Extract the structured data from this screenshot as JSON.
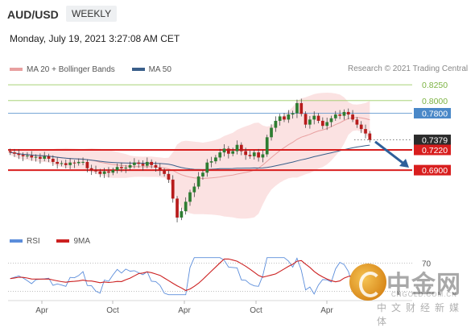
{
  "header": {
    "pair": "AUD/USD",
    "timeframe": "WEEKLY",
    "datetime": "Monday, July 19, 2021 3:27:08 AM CET"
  },
  "legend": {
    "items": [
      {
        "label": "MA 20 + Bollinger Bands",
        "color": "#e8a0a0"
      },
      {
        "label": "MA 50",
        "color": "#3a5f8a"
      }
    ],
    "credit": "Research © 2021 Trading Central"
  },
  "rsi_legend": {
    "items": [
      {
        "label": "RSI",
        "color": "#5b8ddb"
      },
      {
        "label": "9MA",
        "color": "#cc2020"
      }
    ]
  },
  "watermark": {
    "name": "中金网",
    "url": "CNGOLD.COM.CN",
    "sub": "中文财经新媒体"
  },
  "colors": {
    "resistance_blue": "#4a88c8",
    "support_red": "#d81e1e",
    "target_green": "#9ccc65",
    "current_dark": "#2b2b2b",
    "arrow": "#2e5f9a"
  },
  "chart_data": {
    "type": "candlestick",
    "title": "AUD/USD weekly",
    "ylim": [
      0.592,
      0.838
    ],
    "x_ticks": [
      "Apr",
      "Oct",
      "Apr",
      "Oct",
      "Apr"
    ],
    "levels": [
      {
        "label": "0.8250",
        "value": 0.825,
        "kind": "target",
        "style": "thin"
      },
      {
        "label": "0.8000",
        "value": 0.8,
        "kind": "target",
        "style": "thin"
      },
      {
        "label": "0.7800",
        "value": 0.78,
        "kind": "resistance",
        "style": "thin"
      },
      {
        "label": "0.7379",
        "value": 0.7379,
        "kind": "current",
        "style": "dotted"
      },
      {
        "label": "0.7220",
        "value": 0.722,
        "kind": "support",
        "style": "thick"
      },
      {
        "label": "0.6900",
        "value": 0.69,
        "kind": "support",
        "style": "thick"
      }
    ],
    "close_series": [
      0.718,
      0.716,
      0.714,
      0.712,
      0.713,
      0.71,
      0.711,
      0.708,
      0.712,
      0.708,
      0.703,
      0.7,
      0.701,
      0.698,
      0.702,
      0.701,
      0.703,
      0.703,
      0.693,
      0.69,
      0.688,
      0.684,
      0.688,
      0.686,
      0.69,
      0.695,
      0.693,
      0.694,
      0.698,
      0.702,
      0.7,
      0.697,
      0.703,
      0.698,
      0.694,
      0.689,
      0.684,
      0.675,
      0.645,
      0.615,
      0.625,
      0.64,
      0.655,
      0.664,
      0.68,
      0.686,
      0.702,
      0.704,
      0.71,
      0.718,
      0.724,
      0.716,
      0.72,
      0.73,
      0.72,
      0.714,
      0.712,
      0.718,
      0.71,
      0.715,
      0.742,
      0.757,
      0.768,
      0.775,
      0.77,
      0.778,
      0.78,
      0.796,
      0.779,
      0.762,
      0.77,
      0.776,
      0.768,
      0.76,
      0.766,
      0.772,
      0.778,
      0.776,
      0.782,
      0.778,
      0.77,
      0.762,
      0.755,
      0.748,
      0.7379
    ],
    "rsi": {
      "level_label": "70",
      "level": 70
    }
  }
}
